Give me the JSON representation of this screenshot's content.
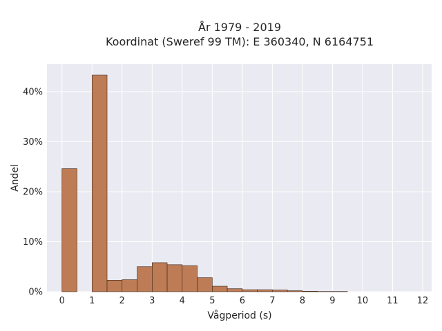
{
  "chart_data": {
    "type": "bar",
    "title_lines": [
      "År 1979 - 2019",
      "Koordinat (Sweref 99 TM): E 360340, N 6164751"
    ],
    "xlabel": "Vågperiod (s)",
    "ylabel": "Andel",
    "bin_width": 0.5,
    "bin_starts": [
      0,
      0.5,
      1,
      1.5,
      2,
      2.5,
      3,
      3.5,
      4,
      4.5,
      5,
      5.5,
      6,
      6.5,
      7,
      7.5,
      8,
      8.5,
      9
    ],
    "values": [
      24.6,
      0,
      43.3,
      2.3,
      2.4,
      5.0,
      5.8,
      5.4,
      5.2,
      2.8,
      1.1,
      0.6,
      0.4,
      0.4,
      0.35,
      0.2,
      0.1,
      0.05,
      0.05
    ],
    "xlim": [
      -0.5,
      12.3
    ],
    "ylim": [
      0,
      45.5
    ],
    "xticks": [
      0,
      1,
      2,
      3,
      4,
      5,
      6,
      7,
      8,
      9,
      10,
      11,
      12
    ],
    "yticks": [
      0,
      10,
      20,
      30,
      40
    ],
    "ytick_suffix": "%",
    "bar_color": "#bd7c56",
    "bar_edge_color": "#3a2418",
    "plot_bg": "#eaeaf2",
    "grid": true
  }
}
